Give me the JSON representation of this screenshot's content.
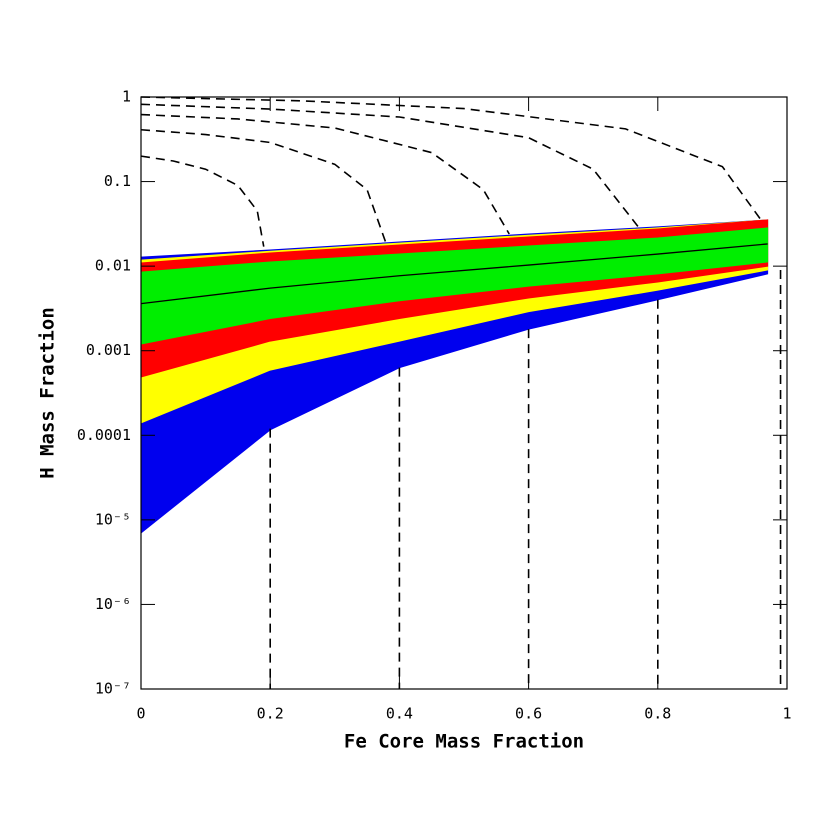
{
  "chart_data": {
    "type": "band",
    "xlabel": "Fe Core Mass Fraction",
    "ylabel": "H Mass Fraction",
    "xlim": [
      0,
      1
    ],
    "ylim": [
      1e-07,
      1
    ],
    "ylog": true,
    "xticks": [
      0,
      0.2,
      0.4,
      0.6,
      0.8,
      1
    ],
    "yticks": [
      1,
      0.1,
      0.01,
      0.001,
      0.0001,
      {
        "value": 1e-05,
        "label": "10⁻⁵"
      },
      {
        "value": 1e-06,
        "label": "10⁻⁶"
      },
      {
        "value": 1e-07,
        "label": "10⁻⁷"
      }
    ],
    "x": [
      0,
      0.2,
      0.4,
      0.6,
      0.8,
      0.97
    ],
    "bands": [
      {
        "color": "#0000ee",
        "upper": [
          0.0128,
          0.0155,
          0.0193,
          0.024,
          0.0291,
          0.0352
        ],
        "lower": [
          7e-06,
          0.000116,
          0.00063,
          0.0018,
          0.004,
          0.0081
        ]
      },
      {
        "color": "#ffff00",
        "upper": [
          0.0118,
          0.015,
          0.0187,
          0.0232,
          0.0283,
          0.0352
        ],
        "lower": [
          0.00014,
          0.00059,
          0.0013,
          0.0029,
          0.0052,
          0.009
        ]
      },
      {
        "color": "#ff0000",
        "upper": [
          0.0109,
          0.0143,
          0.0178,
          0.0221,
          0.0275,
          0.0352
        ],
        "lower": [
          0.00049,
          0.0013,
          0.0024,
          0.0042,
          0.0065,
          0.01
        ]
      },
      {
        "color": "#00ee00",
        "upper": [
          0.0085,
          0.0112,
          0.0139,
          0.0173,
          0.0215,
          0.0283
        ],
        "lower": [
          0.0012,
          0.0024,
          0.0039,
          0.0058,
          0.0081,
          0.0112
        ]
      }
    ],
    "line": {
      "color": "#000000",
      "values": [
        0.0036,
        0.0055,
        0.0077,
        0.0103,
        0.0139,
        0.0183
      ]
    },
    "curves": [
      {
        "x": [
          0,
          0.05,
          0.1,
          0.15,
          0.18,
          0.19,
          null,
          0.2,
          0.2
        ],
        "values": [
          0.2,
          0.175,
          0.14,
          0.09,
          0.045,
          0.017,
          null,
          0.00012,
          1e-07
        ]
      },
      {
        "x": [
          0,
          0.1,
          0.2,
          0.3,
          0.35,
          0.38,
          null,
          0.4,
          0.4
        ],
        "values": [
          0.41,
          0.36,
          0.29,
          0.16,
          0.08,
          0.018,
          null,
          0.00063,
          1e-07
        ]
      },
      {
        "x": [
          0,
          0.15,
          0.3,
          0.45,
          0.53,
          0.57,
          null,
          0.6,
          0.6
        ],
        "values": [
          0.62,
          0.55,
          0.43,
          0.22,
          0.08,
          0.024,
          null,
          0.0018,
          1e-07
        ]
      },
      {
        "x": [
          0,
          0.2,
          0.4,
          0.6,
          0.7,
          0.77,
          null,
          0.8,
          0.8
        ],
        "values": [
          0.82,
          0.72,
          0.58,
          0.33,
          0.14,
          0.029,
          null,
          0.004,
          1e-07
        ]
      },
      {
        "x": [
          0,
          0.25,
          0.5,
          0.75,
          0.9,
          0.96,
          null,
          0.99,
          0.99
        ],
        "values": [
          1.0,
          0.9,
          0.73,
          0.42,
          0.15,
          0.035,
          null,
          0.009,
          1e-07
        ]
      }
    ]
  }
}
